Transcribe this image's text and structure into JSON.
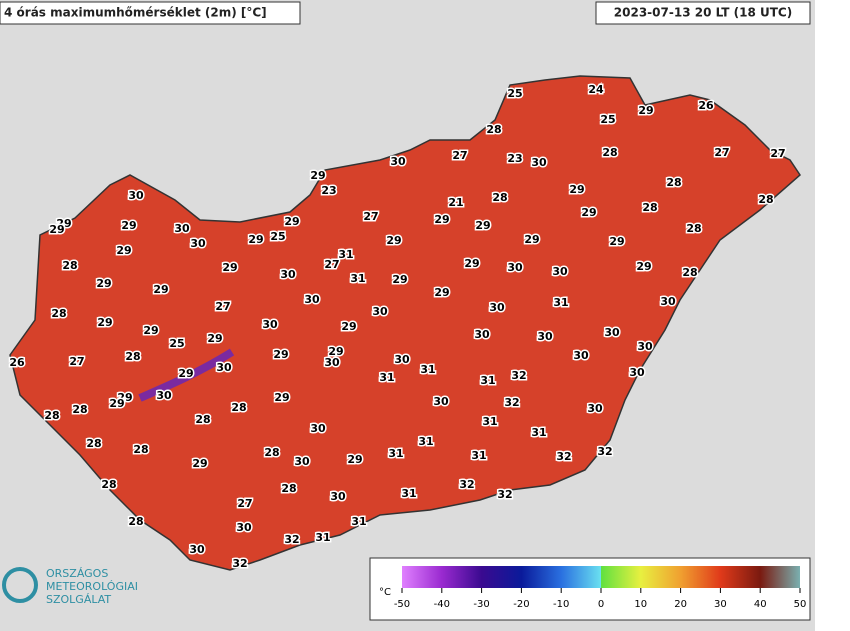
{
  "header": {
    "title": "4 órás maximumhőmérséklet (2m) [°C]",
    "timestamp": "2023-07-13 20 LT (18 UTC)"
  },
  "logo": {
    "lines": [
      "ORSZÁGOS",
      "METEOROLÓGIAI",
      "SZOLGÁLAT"
    ]
  },
  "colorbar": {
    "unit": "°C",
    "lim": [
      -50,
      50
    ],
    "ticks": [
      -50,
      -40,
      -30,
      -20,
      -10,
      0,
      10,
      20,
      30,
      40,
      50
    ]
  },
  "station_values": [
    25,
    24,
    29,
    26,
    25,
    28,
    30,
    27,
    23,
    30,
    28,
    27,
    27,
    29,
    23,
    28,
    29,
    30,
    21,
    28,
    29,
    28,
    28,
    29,
    29,
    29,
    30,
    29,
    27,
    29,
    29,
    28,
    29,
    30,
    29,
    25,
    29,
    29,
    29,
    28,
    29,
    31,
    27,
    29,
    30,
    30,
    29,
    28,
    29,
    29,
    30,
    31,
    29,
    30,
    29,
    31,
    30,
    28,
    27,
    30,
    30,
    29,
    29,
    30,
    29,
    29,
    25,
    30,
    30,
    30,
    28,
    27,
    26,
    29,
    29,
    30,
    30,
    30,
    29,
    30,
    31,
    31,
    31,
    32,
    30,
    30,
    29,
    29,
    30,
    28,
    28,
    29,
    30,
    32,
    30,
    28,
    28,
    31,
    30,
    28,
    28,
    31,
    31,
    28,
    29,
    30,
    29,
    31,
    31,
    32,
    32,
    28,
    28,
    32,
    30,
    31,
    32,
    27,
    28,
    30,
    31,
    32,
    31,
    30,
    32
  ]
}
